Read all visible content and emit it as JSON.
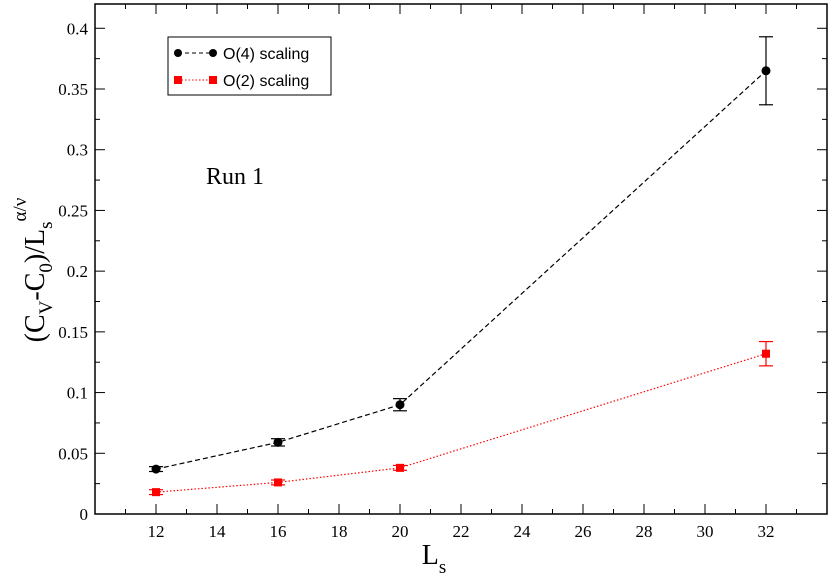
{
  "chart_data": {
    "type": "line",
    "x": [
      12,
      16,
      20,
      32
    ],
    "xlim": [
      10,
      34
    ],
    "ylim": [
      0,
      0.42
    ],
    "xticks": [
      12,
      14,
      16,
      18,
      20,
      22,
      24,
      26,
      28,
      30,
      32
    ],
    "yticks": [
      0,
      0.05,
      0.1,
      0.15,
      0.2,
      0.25,
      0.3,
      0.35,
      0.4
    ],
    "series": [
      {
        "name": "O(4) scaling",
        "color": "#000000",
        "line_style": "dashed",
        "marker": "circle",
        "values": [
          0.037,
          0.059,
          0.09,
          0.365
        ],
        "errors": [
          0.002,
          0.003,
          0.005,
          0.028
        ]
      },
      {
        "name": "O(2) scaling",
        "color": "#ff0000",
        "line_style": "dotted",
        "marker": "square",
        "values": [
          0.018,
          0.026,
          0.038,
          0.132
        ],
        "errors": [
          0.002,
          0.002,
          0.002,
          0.01
        ]
      }
    ],
    "xlabel": "L",
    "xlabel_sub": "s",
    "ylabel": {
      "part1": "(C",
      "sub1": "V",
      "part2": "-C",
      "sub2": "0",
      "part3": ")/L",
      "sub3": "s",
      "sup": "α/ν"
    },
    "annotation": "Run 1",
    "legend_position": "top-left",
    "grid": false
  }
}
